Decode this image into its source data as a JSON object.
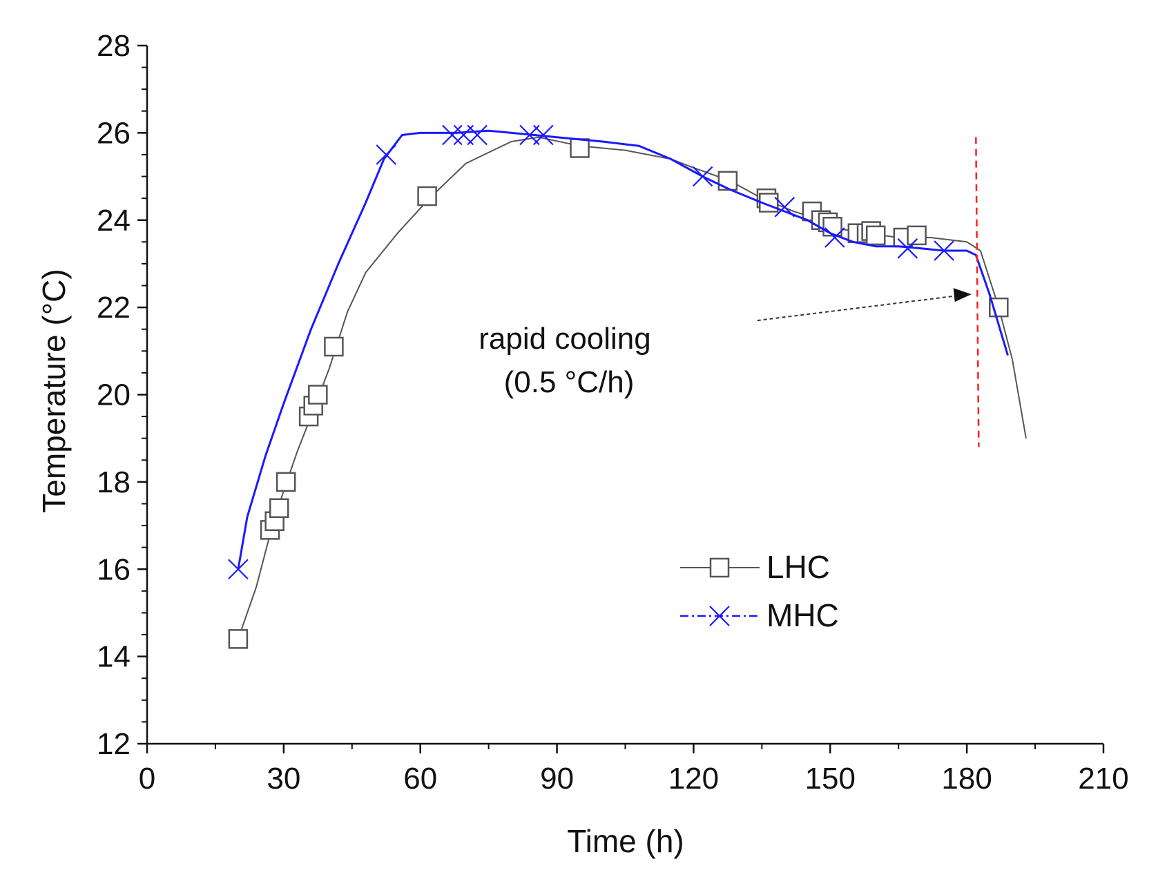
{
  "chart_data": {
    "type": "line",
    "title": "",
    "xlabel": "Time (h)",
    "ylabel": "Temperature (°C)",
    "xlim": [
      0,
      210
    ],
    "ylim": [
      12,
      28
    ],
    "xticks": [
      0,
      30,
      60,
      90,
      120,
      150,
      180,
      210
    ],
    "yticks": [
      12,
      14,
      16,
      18,
      20,
      22,
      24,
      26,
      28
    ],
    "grid": false,
    "legend_position": "center-right",
    "series": [
      {
        "name": "LHC",
        "color": "#555555",
        "marker": "square",
        "line_style": "solid",
        "points": [
          [
            20,
            14.4
          ],
          [
            24,
            15.6
          ],
          [
            27,
            16.8
          ],
          [
            30,
            17.8
          ],
          [
            33,
            18.7
          ],
          [
            36,
            19.5
          ],
          [
            40,
            20.6
          ],
          [
            44,
            21.9
          ],
          [
            48,
            22.8
          ],
          [
            55,
            23.7
          ],
          [
            62,
            24.5
          ],
          [
            70,
            25.3
          ],
          [
            80,
            25.8
          ],
          [
            86,
            25.9
          ],
          [
            95,
            25.7
          ],
          [
            105,
            25.6
          ],
          [
            115,
            25.4
          ],
          [
            120,
            25.2
          ],
          [
            128,
            24.9
          ],
          [
            135,
            24.5
          ],
          [
            142,
            24.2
          ],
          [
            148,
            24.0
          ],
          [
            152,
            23.8
          ],
          [
            158,
            23.7
          ],
          [
            165,
            23.6
          ],
          [
            172,
            23.6
          ],
          [
            180,
            23.5
          ],
          [
            183,
            23.3
          ],
          [
            187,
            22.0
          ],
          [
            190,
            20.8
          ],
          [
            193,
            19.0
          ]
        ],
        "marker_points": [
          [
            20,
            14.4
          ],
          [
            27,
            16.9
          ],
          [
            28,
            17.1
          ],
          [
            29,
            17.4
          ],
          [
            30.5,
            18.0
          ],
          [
            35.5,
            19.5
          ],
          [
            36.5,
            19.75
          ],
          [
            37.5,
            20.0
          ],
          [
            41,
            21.1
          ],
          [
            61.5,
            24.55
          ],
          [
            95,
            25.65
          ],
          [
            127.5,
            24.9
          ],
          [
            136,
            24.5
          ],
          [
            136.5,
            24.4
          ],
          [
            146,
            24.2
          ],
          [
            148,
            24.0
          ],
          [
            149.5,
            23.95
          ],
          [
            150.5,
            23.85
          ],
          [
            156,
            23.7
          ],
          [
            158,
            23.7
          ],
          [
            159,
            23.75
          ],
          [
            160,
            23.65
          ],
          [
            166,
            23.6
          ],
          [
            169,
            23.65
          ],
          [
            187,
            22.0
          ]
        ]
      },
      {
        "name": "MHC",
        "color": "#1a1aff",
        "marker": "x",
        "line_style": "dash-dot",
        "points": [
          [
            20,
            16.0
          ],
          [
            22,
            17.2
          ],
          [
            26,
            18.6
          ],
          [
            30,
            19.8
          ],
          [
            36,
            21.5
          ],
          [
            42,
            23.0
          ],
          [
            48,
            24.4
          ],
          [
            52,
            25.4
          ],
          [
            56,
            25.95
          ],
          [
            60,
            26.0
          ],
          [
            68,
            26.0
          ],
          [
            75,
            26.05
          ],
          [
            80,
            26.0
          ],
          [
            85,
            25.95
          ],
          [
            90,
            25.9
          ],
          [
            100,
            25.8
          ],
          [
            108,
            25.7
          ],
          [
            115,
            25.4
          ],
          [
            122,
            25.0
          ],
          [
            128,
            24.7
          ],
          [
            135,
            24.4
          ],
          [
            140,
            24.2
          ],
          [
            145,
            24.0
          ],
          [
            150,
            23.7
          ],
          [
            155,
            23.5
          ],
          [
            160,
            23.4
          ],
          [
            165,
            23.4
          ],
          [
            170,
            23.35
          ],
          [
            175,
            23.3
          ],
          [
            180,
            23.3
          ],
          [
            182,
            23.2
          ],
          [
            185,
            22.3
          ],
          [
            189,
            20.9
          ]
        ],
        "marker_points": [
          [
            20,
            16.0
          ],
          [
            52.5,
            25.5
          ],
          [
            67,
            25.95
          ],
          [
            69.5,
            25.95
          ],
          [
            72.5,
            25.95
          ],
          [
            84,
            25.95
          ],
          [
            87,
            25.95
          ],
          [
            122,
            25.0
          ],
          [
            140,
            24.3
          ],
          [
            151,
            23.6
          ],
          [
            167,
            23.35
          ],
          [
            175,
            23.3
          ]
        ]
      }
    ],
    "annotations": {
      "rapid_cooling": {
        "line1": "rapid cooling",
        "line2": "(0.5 °C/h)"
      },
      "vline": {
        "x": 182,
        "y_from": 18.8,
        "y_to": 25.9,
        "color": "#ff2020",
        "style": "dashed"
      },
      "arrow": {
        "from": [
          134,
          21.7
        ],
        "to": [
          181,
          22.3
        ]
      }
    }
  }
}
